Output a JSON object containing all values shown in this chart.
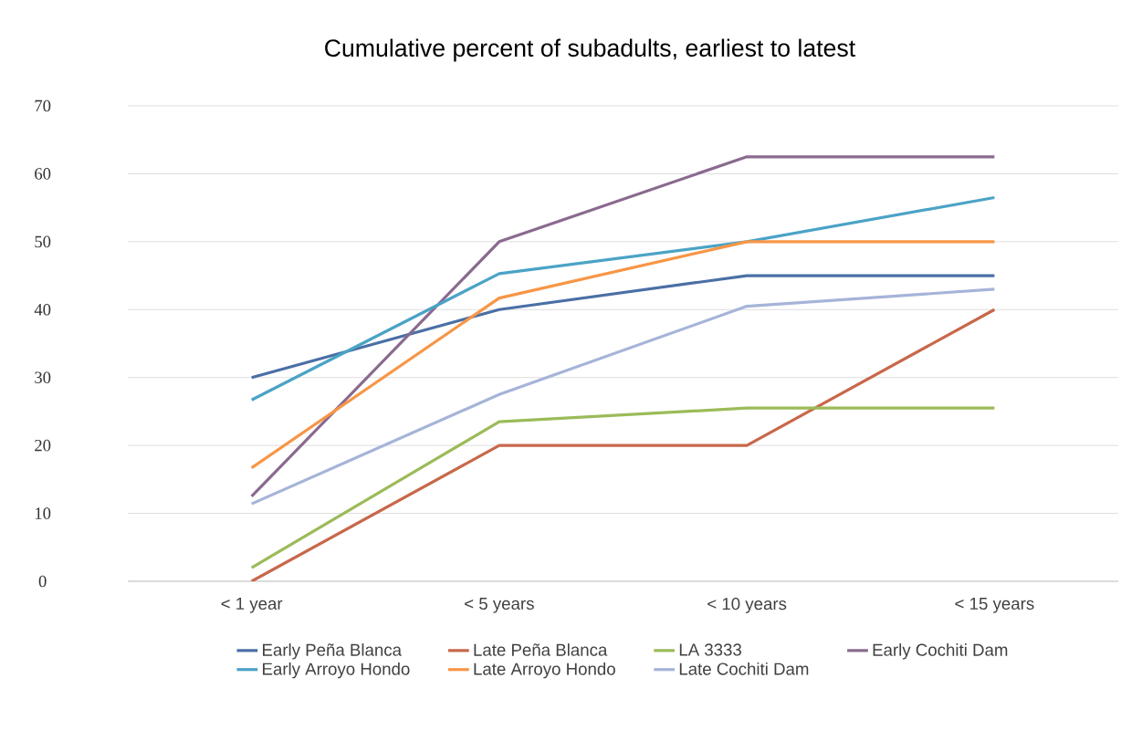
{
  "chart_data": {
    "type": "line",
    "title": "Cumulative percent of subadults, earliest to latest",
    "categories": [
      "< 1 year",
      "< 5 years",
      "< 10 years",
      "< 15 years"
    ],
    "series": [
      {
        "name": "Early Peña Blanca",
        "color": "#4a6fa5",
        "values": [
          30,
          40,
          45,
          45
        ]
      },
      {
        "name": "Late Peña Blanca",
        "color": "#c8684a",
        "values": [
          0,
          20,
          20,
          40
        ]
      },
      {
        "name": "LA 3333",
        "color": "#9bbb59",
        "values": [
          2,
          23.5,
          25.5,
          25.5
        ]
      },
      {
        "name": "Early Cochiti Dam",
        "color": "#8a6a8f",
        "values": [
          12.5,
          50,
          62.5,
          62.5
        ]
      },
      {
        "name": "Early Arroyo Hondo",
        "color": "#4ba3c6",
        "values": [
          26.7,
          45.3,
          50,
          56.5
        ]
      },
      {
        "name": "Late Arroyo Hondo",
        "color": "#f79646",
        "values": [
          16.7,
          41.7,
          50,
          50
        ]
      },
      {
        "name": "Late Cochiti Dam",
        "color": "#a5b4d8",
        "values": [
          11.4,
          27.5,
          40.5,
          43
        ]
      }
    ],
    "ylim": [
      0,
      70
    ],
    "yticks": [
      0,
      10,
      20,
      30,
      40,
      50,
      60,
      70
    ],
    "grid": "y",
    "legend": "bottom"
  }
}
